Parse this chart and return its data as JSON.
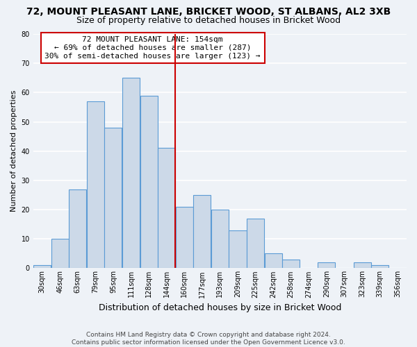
{
  "title": "72, MOUNT PLEASANT LANE, BRICKET WOOD, ST ALBANS, AL2 3XB",
  "subtitle": "Size of property relative to detached houses in Bricket Wood",
  "xlabel": "Distribution of detached houses by size in Bricket Wood",
  "ylabel": "Number of detached properties",
  "bin_labels": [
    "30sqm",
    "46sqm",
    "63sqm",
    "79sqm",
    "95sqm",
    "111sqm",
    "128sqm",
    "144sqm",
    "160sqm",
    "177sqm",
    "193sqm",
    "209sqm",
    "225sqm",
    "242sqm",
    "258sqm",
    "274sqm",
    "290sqm",
    "307sqm",
    "323sqm",
    "339sqm",
    "356sqm"
  ],
  "bar_heights": [
    1,
    10,
    27,
    57,
    48,
    65,
    59,
    41,
    21,
    25,
    20,
    13,
    17,
    5,
    3,
    0,
    2,
    0,
    2,
    1,
    0
  ],
  "bar_color": "#ccd9e8",
  "bar_edgecolor": "#5b9bd5",
  "vline_x_index": 8,
  "ylim": [
    0,
    80
  ],
  "yticks": [
    0,
    10,
    20,
    30,
    40,
    50,
    60,
    70,
    80
  ],
  "annotation_title": "72 MOUNT PLEASANT LANE: 154sqm",
  "annotation_line1": "← 69% of detached houses are smaller (287)",
  "annotation_line2": "30% of semi-detached houses are larger (123) →",
  "annotation_box_color": "#cc0000",
  "footer_line1": "Contains HM Land Registry data © Crown copyright and database right 2024.",
  "footer_line2": "Contains public sector information licensed under the Open Government Licence v3.0.",
  "background_color": "#eef2f7",
  "grid_color": "#ffffff",
  "title_fontsize": 10,
  "subtitle_fontsize": 9,
  "xlabel_fontsize": 9,
  "ylabel_fontsize": 8,
  "tick_fontsize": 7,
  "annotation_fontsize": 8,
  "footer_fontsize": 6.5
}
